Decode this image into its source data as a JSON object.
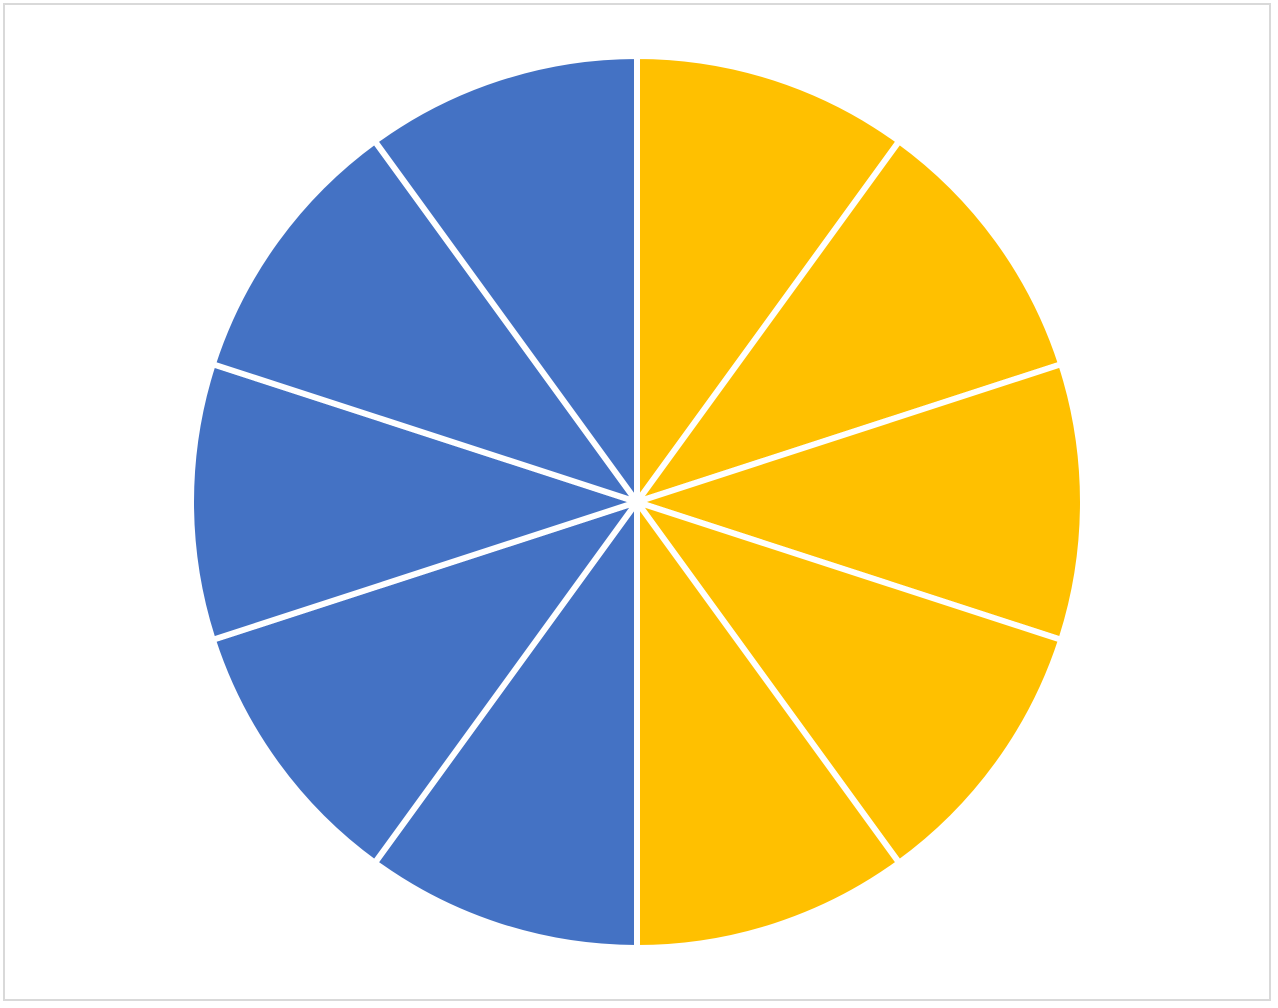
{
  "chart_data": {
    "type": "pie",
    "title": "",
    "start_angle_deg": 0,
    "direction": "clockwise",
    "values": [
      1,
      1,
      1,
      1,
      1,
      1,
      1,
      1,
      1,
      1
    ],
    "slice_colors": [
      "#FFC000",
      "#FFC000",
      "#FFC000",
      "#FFC000",
      "#FFC000",
      "#4472C4",
      "#4472C4",
      "#4472C4",
      "#4472C4",
      "#4472C4"
    ],
    "separator_color": "#FFFFFF",
    "legend": "none",
    "data_labels": false
  },
  "frame": {
    "border_color": "#D9D9D9"
  }
}
